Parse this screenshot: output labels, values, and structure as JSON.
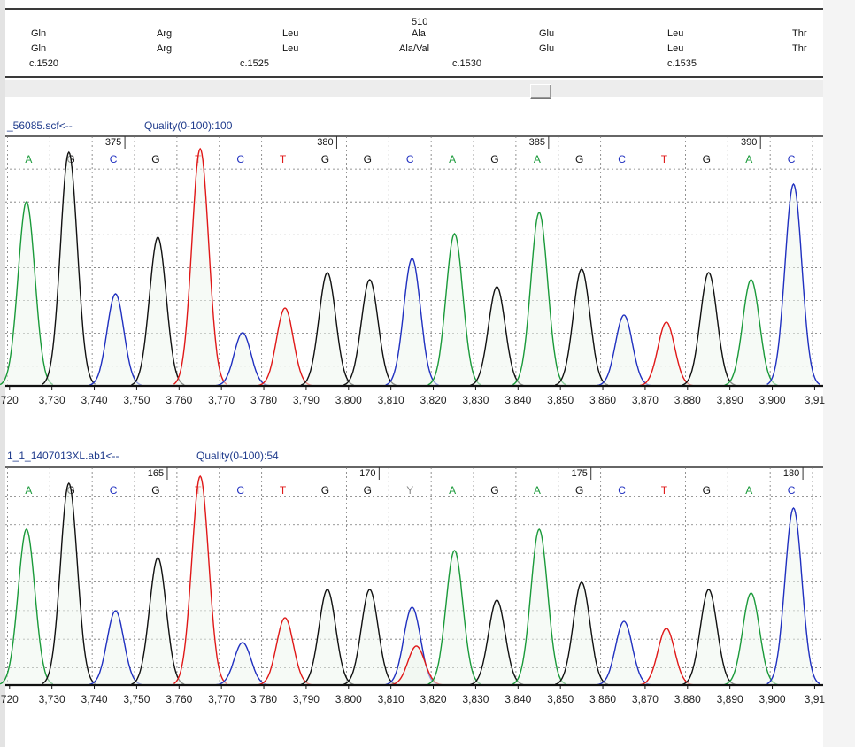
{
  "header": {
    "codon_number": "510",
    "row1": [
      "Gln",
      "Arg",
      "Leu",
      "Ala",
      "Glu",
      "Leu",
      "Thr"
    ],
    "row2": [
      "Gln",
      "Arg",
      "Leu",
      "Ala/Val",
      "Glu",
      "Leu",
      "Thr"
    ],
    "positions": [
      "c.1520",
      "c.1525",
      "c.1530",
      "c.1535"
    ]
  },
  "colors": {
    "A": "#1a9a3a",
    "G": "#111111",
    "C": "#2030c0",
    "T": "#e01818",
    "Y": "#8a8a8a"
  },
  "panels": [
    {
      "title": "_56085.scf<--",
      "quality": "Quality(0-100):100",
      "bases": [
        "A",
        "G",
        "C",
        "G",
        "T",
        "C",
        "T",
        "G",
        "G",
        "C",
        "A",
        "G",
        "A",
        "G",
        "C",
        "T",
        "G",
        "A",
        "C"
      ],
      "base_numbers": [
        {
          "label": "375",
          "index": 2
        },
        {
          "label": "380",
          "index": 7
        },
        {
          "label": "385",
          "index": 12
        },
        {
          "label": "390",
          "index": 17
        }
      ],
      "peaks": [
        {
          "base": "A",
          "pos": 3724,
          "height": 0.52
        },
        {
          "base": "G",
          "pos": 3734,
          "height": 0.66
        },
        {
          "base": "C",
          "pos": 3745,
          "height": 0.26
        },
        {
          "base": "G",
          "pos": 3755,
          "height": 0.42
        },
        {
          "base": "T",
          "pos": 3765,
          "height": 0.67
        },
        {
          "base": "C",
          "pos": 3775,
          "height": 0.15
        },
        {
          "base": "T",
          "pos": 3785,
          "height": 0.22
        },
        {
          "base": "G",
          "pos": 3795,
          "height": 0.32
        },
        {
          "base": "G",
          "pos": 3805,
          "height": 0.3
        },
        {
          "base": "C",
          "pos": 3815,
          "height": 0.36
        },
        {
          "base": "A",
          "pos": 3825,
          "height": 0.43
        },
        {
          "base": "G",
          "pos": 3835,
          "height": 0.28
        },
        {
          "base": "A",
          "pos": 3845,
          "height": 0.49
        },
        {
          "base": "G",
          "pos": 3855,
          "height": 0.33
        },
        {
          "base": "C",
          "pos": 3865,
          "height": 0.2
        },
        {
          "base": "T",
          "pos": 3875,
          "height": 0.18
        },
        {
          "base": "G",
          "pos": 3885,
          "height": 0.32
        },
        {
          "base": "A",
          "pos": 3895,
          "height": 0.3
        },
        {
          "base": "C",
          "pos": 3905,
          "height": 0.57
        }
      ]
    },
    {
      "title": "1_1_1407013XL.ab1<--",
      "quality": "Quality(0-100):54",
      "bases": [
        "A",
        "G",
        "C",
        "G",
        "T",
        "C",
        "T",
        "G",
        "G",
        "Y",
        "A",
        "G",
        "A",
        "G",
        "C",
        "T",
        "G",
        "A",
        "C"
      ],
      "base_numbers": [
        {
          "label": "165",
          "index": 3
        },
        {
          "label": "170",
          "index": 8
        },
        {
          "label": "175",
          "index": 13
        },
        {
          "label": "180",
          "index": 18
        }
      ],
      "peaks": [
        {
          "base": "A",
          "pos": 3724,
          "height": 0.44
        },
        {
          "base": "G",
          "pos": 3734,
          "height": 0.57
        },
        {
          "base": "C",
          "pos": 3745,
          "height": 0.21
        },
        {
          "base": "G",
          "pos": 3755,
          "height": 0.36
        },
        {
          "base": "T",
          "pos": 3765,
          "height": 0.59
        },
        {
          "base": "C",
          "pos": 3775,
          "height": 0.12
        },
        {
          "base": "T",
          "pos": 3785,
          "height": 0.19
        },
        {
          "base": "G",
          "pos": 3795,
          "height": 0.27
        },
        {
          "base": "G",
          "pos": 3805,
          "height": 0.27
        },
        {
          "base": "C",
          "pos": 3815,
          "height": 0.22
        },
        {
          "base": "T",
          "pos": 3816,
          "height": 0.11
        },
        {
          "base": "A",
          "pos": 3825,
          "height": 0.38
        },
        {
          "base": "G",
          "pos": 3835,
          "height": 0.24
        },
        {
          "base": "A",
          "pos": 3845,
          "height": 0.44
        },
        {
          "base": "G",
          "pos": 3855,
          "height": 0.29
        },
        {
          "base": "C",
          "pos": 3865,
          "height": 0.18
        },
        {
          "base": "T",
          "pos": 3875,
          "height": 0.16
        },
        {
          "base": "G",
          "pos": 3885,
          "height": 0.27
        },
        {
          "base": "A",
          "pos": 3895,
          "height": 0.26
        },
        {
          "base": "C",
          "pos": 3905,
          "height": 0.5
        }
      ]
    }
  ],
  "x_axis": {
    "start": 3719,
    "end": 3912,
    "tick_labels": [
      "720",
      "3,730",
      "3,740",
      "3,750",
      "3,760",
      "3,770",
      "3,780",
      "3,790",
      "3,800",
      "3,810",
      "3,820",
      "3,830",
      "3,840",
      "3,850",
      "3,860",
      "3,870",
      "3,880",
      "3,890",
      "3,900",
      "3,91"
    ]
  }
}
